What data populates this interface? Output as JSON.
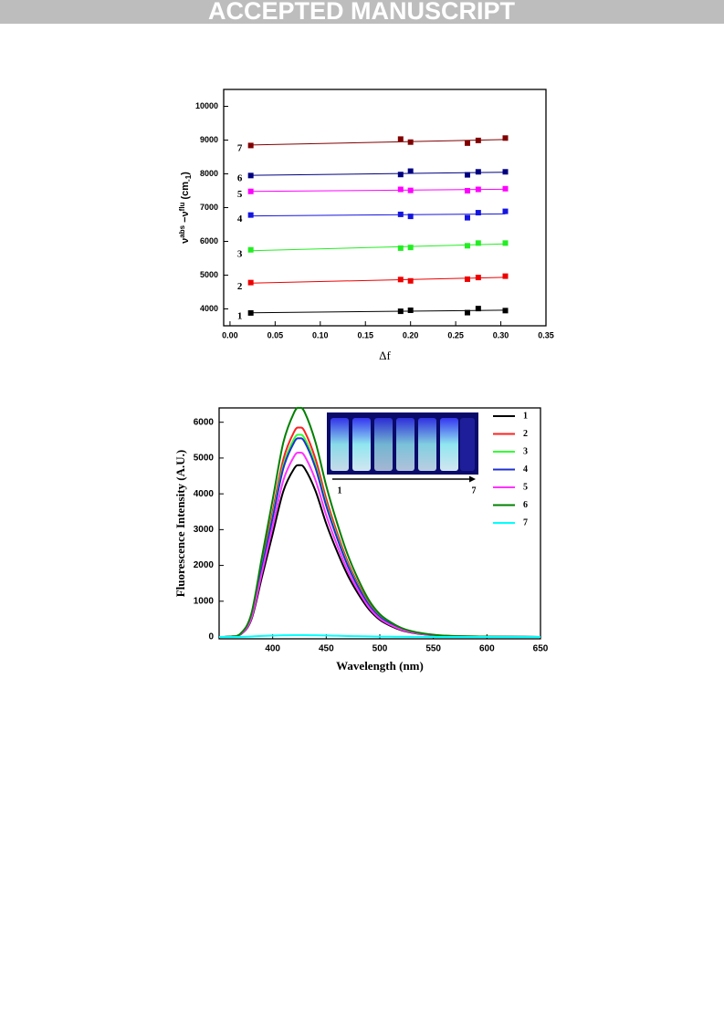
{
  "header": {
    "banner": "ACCEPTED MANUSCRIPT"
  },
  "chart_data": [
    {
      "type": "scatter",
      "trendline": "linear",
      "y_label": [
        "ν",
        "abs",
        " −ν",
        "flu",
        " (cm",
        "-1",
        ")"
      ],
      "x_label": "Δf",
      "x": [
        0.023,
        0.189,
        0.2,
        0.263,
        0.275,
        0.305
      ],
      "series": [
        {
          "name": "1",
          "color": "#000000",
          "values": [
            3880,
            3930,
            3960,
            3890,
            4010,
            3950
          ]
        },
        {
          "name": "2",
          "color": "#ee0000",
          "values": [
            4780,
            4870,
            4830,
            4880,
            4930,
            4970
          ]
        },
        {
          "name": "3",
          "color": "#22ee22",
          "values": [
            5750,
            5800,
            5820,
            5870,
            5950,
            5950
          ]
        },
        {
          "name": "4",
          "color": "#1515e0",
          "values": [
            6780,
            6800,
            6740,
            6700,
            6850,
            6890
          ]
        },
        {
          "name": "5",
          "color": "#ff00ff",
          "values": [
            7480,
            7540,
            7510,
            7500,
            7540,
            7560
          ]
        },
        {
          "name": "6",
          "color": "#000080",
          "values": [
            7950,
            7980,
            8080,
            7970,
            8060,
            8060
          ]
        },
        {
          "name": "7",
          "color": "#800000",
          "values": [
            8840,
            9030,
            8940,
            8910,
            8990,
            9060
          ]
        }
      ],
      "xlim": [
        -0.007,
        0.35
      ],
      "xticks": [
        {
          "value": 0,
          "label": "0.00"
        },
        {
          "value": 0.05,
          "label": "0.05"
        },
        {
          "value": 0.1,
          "label": "0.10"
        },
        {
          "value": 0.15,
          "label": "0.15"
        },
        {
          "value": 0.2,
          "label": "0.20"
        },
        {
          "value": 0.25,
          "label": "0.25"
        },
        {
          "value": 0.3,
          "label": "0.30"
        },
        {
          "value": 0.35,
          "label": "0.35"
        }
      ],
      "ylim": [
        3500,
        10500
      ],
      "yticks": [
        4000,
        5000,
        6000,
        7000,
        8000,
        9000,
        10000
      ]
    },
    {
      "type": "line",
      "legend": "upper right",
      "x_label": "Wavelength (nm)",
      "y_label": "Fluorescence Intensity (A.U.)",
      "annotations": [
        "1",
        "7"
      ],
      "x": [
        350,
        360,
        370,
        380,
        390,
        400,
        410,
        420,
        425,
        430,
        440,
        450,
        460,
        470,
        480,
        490,
        500,
        510,
        520,
        530,
        540,
        550,
        560,
        580,
        600,
        620,
        650
      ],
      "series": [
        {
          "name": "1",
          "color": "#000000",
          "values": [
            0,
            10,
            72,
            480,
            1680,
            2880,
            4080,
            4704,
            4800,
            4704,
            4080,
            3168,
            2400,
            1728,
            1200,
            768,
            480,
            312,
            192,
            120,
            77,
            48,
            29,
            14,
            10,
            5,
            0
          ]
        },
        {
          "name": "2",
          "color": "#ff2020",
          "values": [
            0,
            12,
            88,
            585,
            2048,
            3510,
            4973,
            5733,
            5850,
            5733,
            4973,
            3861,
            2925,
            2106,
            1463,
            936,
            585,
            380,
            234,
            146,
            94,
            59,
            35,
            18,
            12,
            6,
            0
          ]
        },
        {
          "name": "3",
          "color": "#33ff33",
          "values": [
            0,
            11,
            85,
            565,
            1978,
            3390,
            4803,
            5537,
            5650,
            5537,
            4803,
            3729,
            2825,
            2034,
            1413,
            904,
            565,
            367,
            226,
            141,
            90,
            57,
            34,
            17,
            11,
            6,
            0
          ]
        },
        {
          "name": "4",
          "color": "#2030d0",
          "values": [
            0,
            11,
            83,
            555,
            1943,
            3330,
            4718,
            5439,
            5550,
            5439,
            4718,
            3663,
            2775,
            1998,
            1388,
            888,
            555,
            361,
            222,
            139,
            89,
            56,
            33,
            17,
            11,
            6,
            0
          ]
        },
        {
          "name": "5",
          "color": "#ff33ff",
          "values": [
            0,
            10,
            77,
            515,
            1803,
            3090,
            4378,
            5047,
            5150,
            5047,
            4378,
            3399,
            2575,
            1854,
            1288,
            824,
            515,
            335,
            206,
            129,
            82,
            52,
            31,
            15,
            10,
            5,
            0
          ]
        },
        {
          "name": "6",
          "color": "#008000",
          "values": [
            0,
            13,
            96,
            640,
            2240,
            3840,
            5440,
            6272,
            6400,
            6272,
            5440,
            4224,
            3200,
            2304,
            1600,
            1024,
            640,
            416,
            256,
            160,
            102,
            64,
            38,
            19,
            13,
            6,
            0
          ]
        },
        {
          "name": "7",
          "color": "#00ffff",
          "values": [
            0,
            0,
            5,
            15,
            30,
            40,
            48,
            52,
            52,
            52,
            48,
            42,
            35,
            28,
            22,
            16,
            12,
            9,
            6,
            4,
            3,
            2,
            1,
            1,
            0,
            0,
            0
          ]
        }
      ],
      "xlim": [
        350,
        650
      ],
      "xticks": [
        400,
        450,
        500,
        550,
        600,
        650
      ],
      "ylim": [
        -50,
        6400
      ],
      "yticks": [
        0,
        1000,
        2000,
        3000,
        4000,
        5000,
        6000
      ]
    }
  ]
}
